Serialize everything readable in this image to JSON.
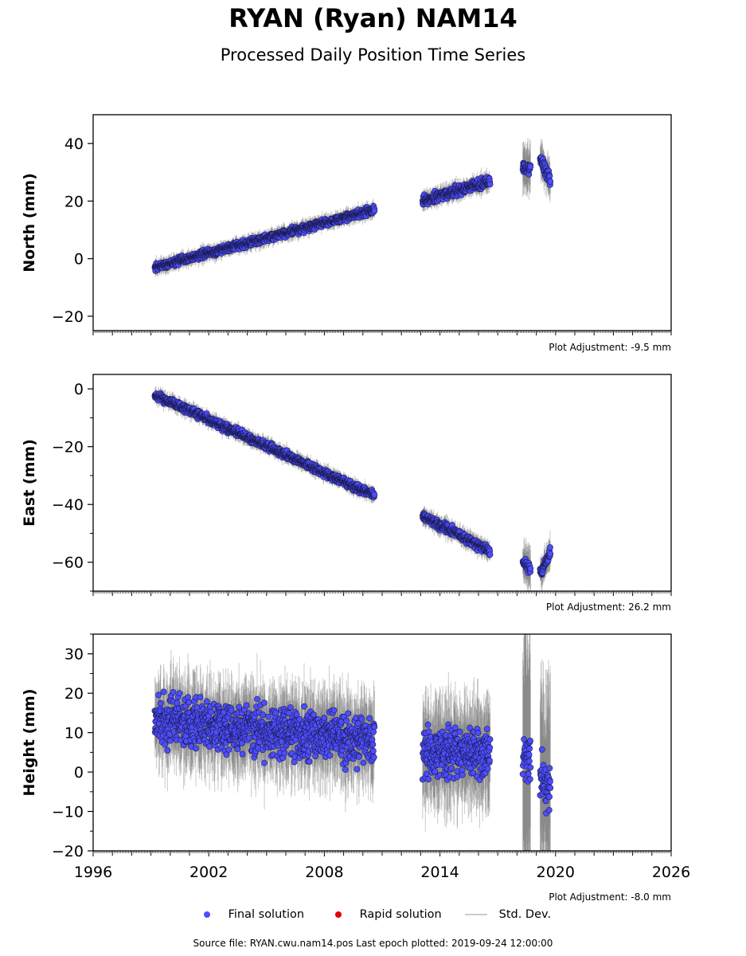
{
  "title": "RYAN (Ryan) NAM14",
  "subtitle": "Processed Daily Position Time Series",
  "legend": {
    "final": "Final solution",
    "rapid": "Rapid solution",
    "stddev": "Std. Dev.",
    "final_color": "#4d4dff",
    "rapid_color": "#e00000",
    "stddev_color": "#cccccc"
  },
  "source_text": "Source file: RYAN.cwu.nam14.pos  Last epoch plotted: 2019-09-24 12:00:00",
  "chart_data": [
    {
      "type": "scatter",
      "ylabel": "North (mm)",
      "xlim": [
        1996,
        2026
      ],
      "ylim": [
        -25,
        50
      ],
      "yticks": [
        -20,
        0,
        20,
        40
      ],
      "adjustment": "Plot Adjustment: -9.5 mm",
      "segments": [
        {
          "x_start": 1999.2,
          "x_end": 2010.6,
          "y_start": -3,
          "y_end": 17,
          "scatter": 1.5,
          "err": 2.5
        },
        {
          "x_start": 2013.1,
          "x_end": 2016.6,
          "y_start": 20,
          "y_end": 27,
          "scatter": 2.0,
          "err": 3
        },
        {
          "x_start": 2018.3,
          "x_end": 2018.7,
          "y_start": 32,
          "y_end": 31,
          "scatter": 2.5,
          "err": 8
        },
        {
          "x_start": 2019.2,
          "x_end": 2019.73,
          "y_start": 35,
          "y_end": 27,
          "scatter": 2.5,
          "err": 6
        }
      ]
    },
    {
      "type": "scatter",
      "ylabel": "East (mm)",
      "xlim": [
        1996,
        2026
      ],
      "ylim": [
        -70,
        5
      ],
      "yticks": [
        -60,
        -40,
        -20,
        0
      ],
      "adjustment": "Plot Adjustment: 26.2 mm",
      "segments": [
        {
          "x_start": 1999.2,
          "x_end": 2010.6,
          "y_start": -2,
          "y_end": -37,
          "scatter": 1.5,
          "err": 2.5
        },
        {
          "x_start": 2013.1,
          "x_end": 2016.6,
          "y_start": -44,
          "y_end": -56,
          "scatter": 1.8,
          "err": 3
        },
        {
          "x_start": 2018.3,
          "x_end": 2018.7,
          "y_start": -60,
          "y_end": -62,
          "scatter": 2.0,
          "err": 7
        },
        {
          "x_start": 2019.2,
          "x_end": 2019.73,
          "y_start": -64,
          "y_end": -57,
          "scatter": 2.5,
          "err": 5
        }
      ]
    },
    {
      "type": "scatter",
      "ylabel": "Height (mm)",
      "xlim": [
        1996,
        2026
      ],
      "ylim": [
        -20,
        35
      ],
      "yticks": [
        -20,
        -10,
        0,
        10,
        20,
        30
      ],
      "xticks": [
        1996,
        2002,
        2008,
        2014,
        2020,
        2026
      ],
      "adjustment": "Plot Adjustment: -8.0 mm",
      "segments": [
        {
          "x_start": 1999.2,
          "x_end": 2010.6,
          "y_start": 13,
          "y_end": 8,
          "scatter": 7,
          "err": 10
        },
        {
          "x_start": 2013.1,
          "x_end": 2016.6,
          "y_start": 5,
          "y_end": 5,
          "scatter": 7,
          "err": 12
        },
        {
          "x_start": 2018.3,
          "x_end": 2018.7,
          "y_start": 5,
          "y_end": 3,
          "scatter": 7,
          "err": 40
        },
        {
          "x_start": 2019.2,
          "x_end": 2019.73,
          "y_start": -2,
          "y_end": -5,
          "scatter": 7,
          "err": 25
        }
      ]
    }
  ]
}
